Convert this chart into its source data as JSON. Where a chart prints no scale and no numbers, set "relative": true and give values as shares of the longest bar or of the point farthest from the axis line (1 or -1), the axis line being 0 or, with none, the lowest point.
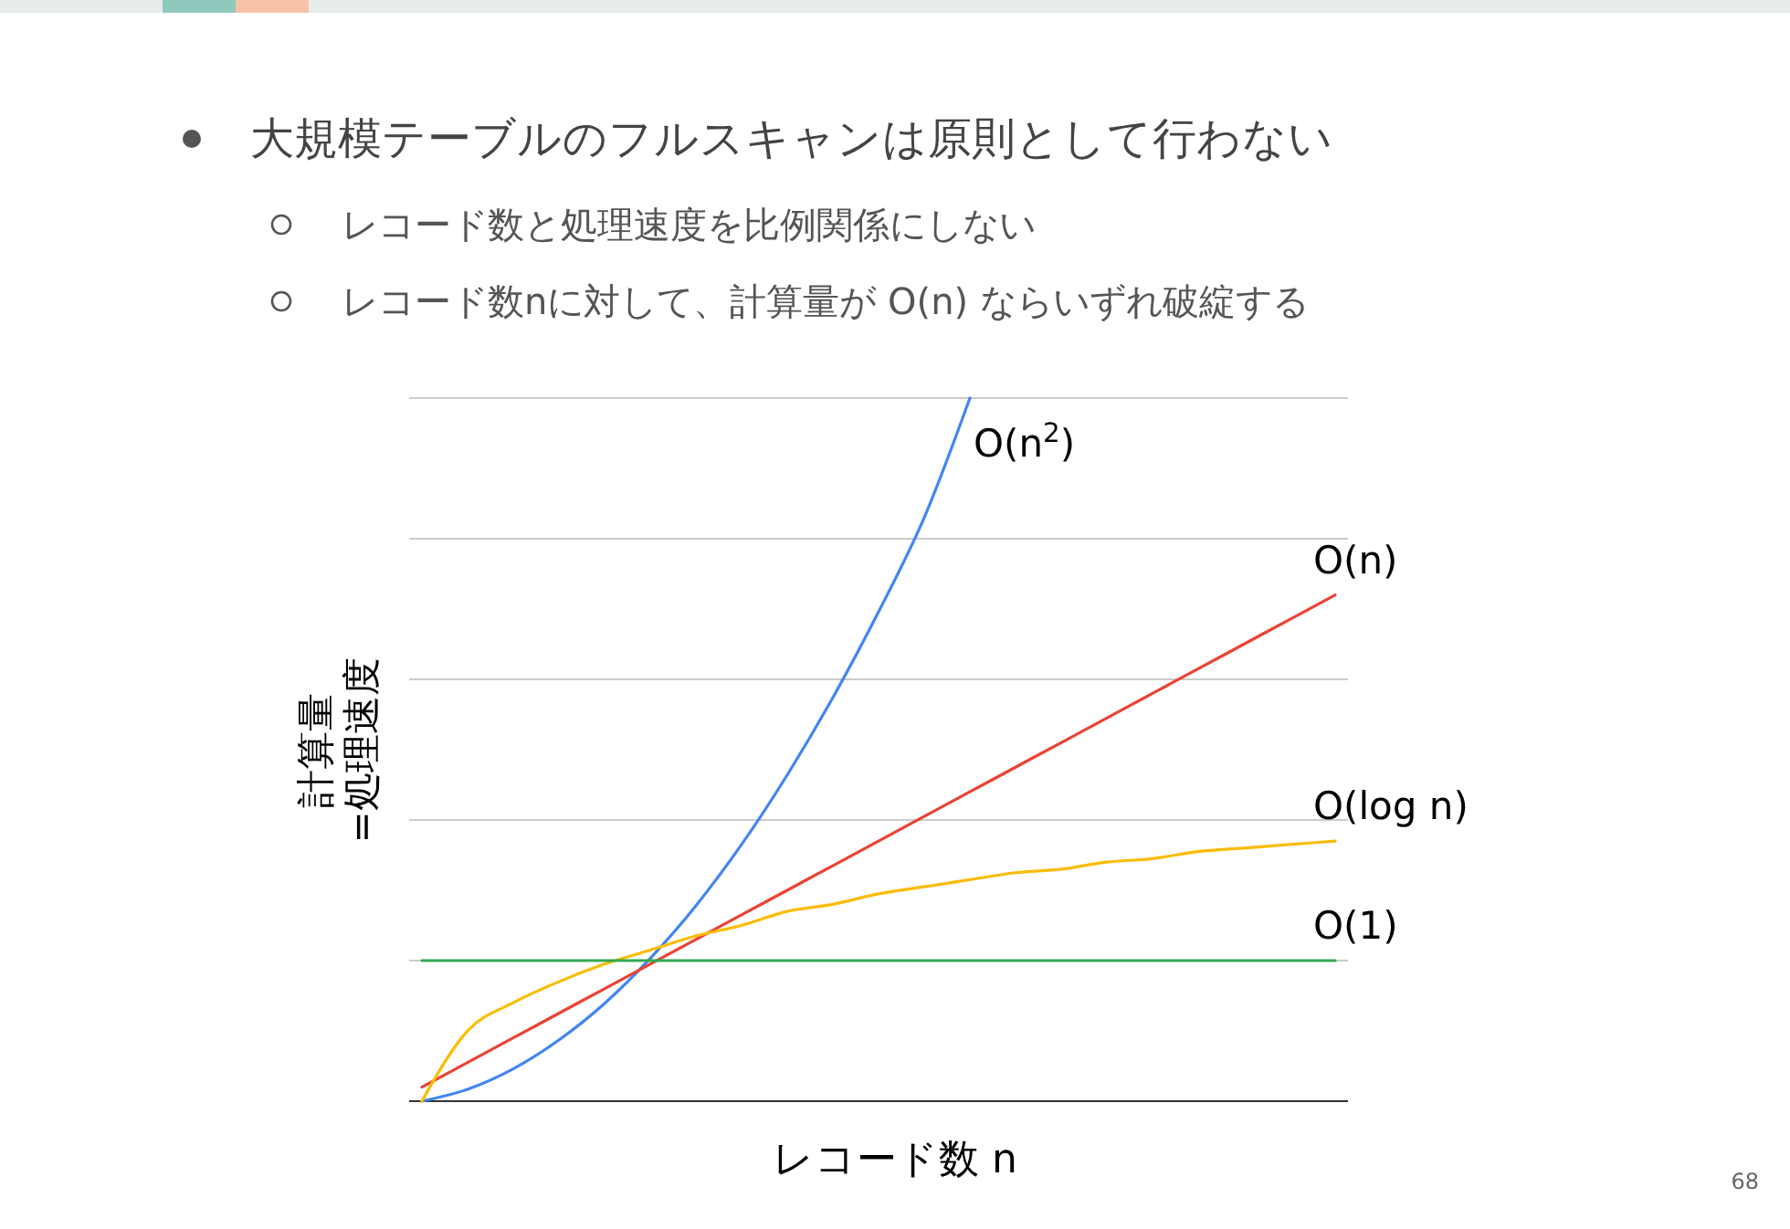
{
  "chart_data": {
    "type": "line",
    "relative": true,
    "title": "大規模テーブルのフルスキャンは原則として行わない",
    "annotations": [
      "レコード数と処理速度を比例関係にしない",
      "レコード数nに対して、計算量が O(n) ならいずれ破綻する",
      "68"
    ],
    "xlabel": "レコード数 n",
    "ylabel": "計算量\n=処理速度",
    "grid": "y",
    "marker": "none",
    "line_style": "solid",
    "categories": [
      null,
      null,
      null,
      null,
      null,
      null,
      null,
      null,
      null,
      null,
      null,
      null,
      null,
      null,
      null,
      null,
      null,
      null,
      null,
      null,
      null
    ],
    "series": [
      {
        "name": "O(n$^{2}$)",
        "color": "#4285f4",
        "values": [
          0,
          0.017,
          0.046,
          0.087,
          0.139,
          0.203,
          0.278,
          0.365,
          0.464,
          0.574,
          0.696,
          0.83,
          1,
          null,
          null,
          null,
          null,
          null,
          null,
          null,
          null
        ]
      },
      {
        "name": "O(n)",
        "color": "#ea4335",
        "values": [
          0.02,
          0.055,
          0.09,
          0.125,
          0.16,
          0.195,
          0.23,
          0.265,
          0.3,
          0.335,
          0.37,
          0.405,
          0.44,
          0.475,
          0.51,
          0.545,
          0.58,
          0.615,
          0.65,
          0.685,
          0.72
        ]
      },
      {
        "name": "O(log n)",
        "color": "#fbbc04",
        "values": [
          0,
          0.1,
          0.14,
          0.17,
          0.195,
          0.215,
          0.235,
          0.25,
          0.27,
          0.28,
          0.295,
          0.305,
          0.315,
          0.325,
          0.33,
          0.34,
          0.345,
          0.355,
          0.36,
          0.365,
          0.37
        ]
      },
      {
        "name": "O(1)",
        "color": "#34a853",
        "values": [
          0.2,
          0.2,
          0.2,
          0.2,
          0.2,
          0.2,
          0.2,
          0.2,
          0.2,
          0.2,
          0.2,
          0.2,
          0.2,
          0.2,
          0.2,
          0.2,
          0.2,
          0.2,
          0.2,
          0.2,
          0.2
        ]
      }
    ]
  }
}
